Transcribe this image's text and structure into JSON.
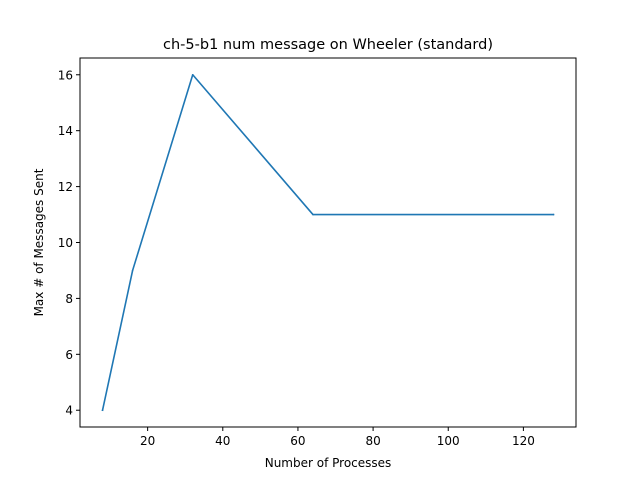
{
  "chart_data": {
    "type": "line",
    "title": "ch-5-b1 num message on Wheeler (standard)",
    "xlabel": "Number of Processes",
    "ylabel": "Max # of Messages Sent",
    "xlim": [
      2,
      134
    ],
    "ylim": [
      3.4,
      16.6
    ],
    "xticks": [
      20,
      40,
      60,
      80,
      100,
      120
    ],
    "yticks": [
      4,
      6,
      8,
      10,
      12,
      14,
      16
    ],
    "grid": false,
    "series": [
      {
        "color": "#1f77b4",
        "x": [
          8,
          16,
          32,
          64,
          128
        ],
        "y": [
          4,
          9,
          16,
          11,
          11
        ]
      }
    ]
  }
}
